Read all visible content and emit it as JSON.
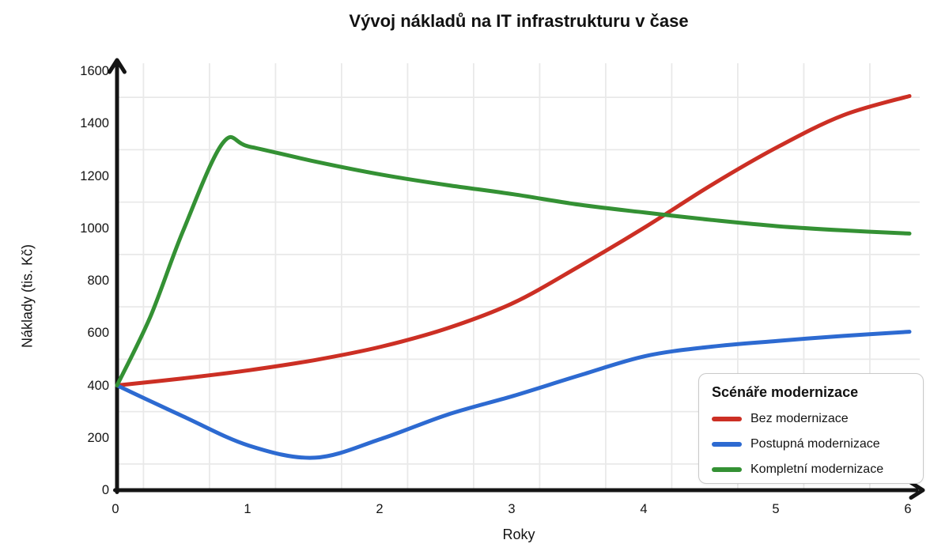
{
  "title": "Vývoj nákladů na IT infrastrukturu v čase",
  "chart_data": {
    "type": "line",
    "title": "Vývoj nákladů na IT infrastrukturu v čase",
    "xlabel": "Roky",
    "ylabel": "Náklady (tis. Kč)",
    "xlim": [
      0,
      6
    ],
    "ylim": [
      0,
      1600
    ],
    "x_ticks": [
      0,
      1,
      2,
      3,
      4,
      5,
      6
    ],
    "y_ticks": [
      0,
      200,
      400,
      600,
      800,
      1000,
      1200,
      1400,
      1600
    ],
    "grid": {
      "color": "#e9e9e9",
      "x_lines": [
        0.2,
        0.7,
        1.2,
        1.7,
        2.2,
        2.7,
        3.2,
        3.7,
        4.2,
        4.7,
        5.2,
        5.7
      ],
      "y_lines": [
        100,
        300,
        500,
        700,
        900,
        1100,
        1300,
        1500
      ]
    },
    "axis_color": "#141414",
    "legend": {
      "title": "Scénáře modernizace",
      "position": "bottom-right"
    },
    "series": [
      {
        "name": "Bez modernizace",
        "color": "#cc2f24",
        "x": [
          0,
          0.5,
          1,
          1.5,
          2,
          2.5,
          3,
          3.5,
          4,
          4.5,
          5,
          5.5,
          6
        ],
        "y": [
          400,
          427,
          458,
          497,
          548,
          618,
          715,
          855,
          1005,
          1165,
          1310,
          1432,
          1505
        ]
      },
      {
        "name": "Postupná modernizace",
        "color": "#2d6ad1",
        "x": [
          0,
          0.5,
          1,
          1.5,
          2,
          2.5,
          3,
          3.5,
          4,
          4.5,
          5,
          5.5,
          6
        ],
        "y": [
          400,
          282,
          170,
          124,
          196,
          288,
          360,
          438,
          512,
          548,
          570,
          589,
          605
        ]
      },
      {
        "name": "Kompletní modernizace",
        "color": "#349134",
        "x": [
          0,
          0.25,
          0.5,
          0.8,
          1,
          1.5,
          2,
          2.5,
          3,
          3.5,
          4,
          4.5,
          5,
          5.5,
          6
        ],
        "y": [
          400,
          660,
          990,
          1325,
          1312,
          1255,
          1205,
          1165,
          1130,
          1090,
          1060,
          1032,
          1008,
          992,
          980
        ]
      }
    ],
    "annotations": {
      "intersection_red_green": {
        "x": 4.15,
        "y": 1050
      }
    }
  }
}
